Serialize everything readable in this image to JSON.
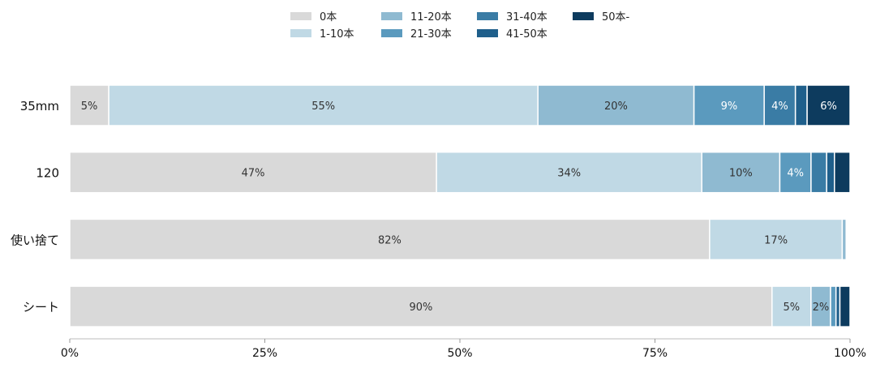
{
  "chart_data": {
    "type": "bar",
    "orientation": "horizontal",
    "stacked": true,
    "percent": true,
    "categories": [
      "35mm",
      "120",
      "使い捨て",
      "シート"
    ],
    "xlim": [
      0,
      100
    ],
    "x_ticks": [
      "0%",
      "25%",
      "50%",
      "75%",
      "100%"
    ],
    "legend_position": "top",
    "grid": false,
    "series": [
      {
        "name": "0本",
        "color": "#d9d9d9",
        "values": [
          5,
          47,
          82,
          90
        ],
        "labels": [
          "5%",
          "47%",
          "82%",
          "90%"
        ]
      },
      {
        "name": "1-10本",
        "color": "#c0d9e5",
        "values": [
          55,
          34,
          17,
          5
        ],
        "labels": [
          "55%",
          "34%",
          "17%",
          "5%"
        ]
      },
      {
        "name": "11-20本",
        "color": "#8fbad1",
        "values": [
          20,
          10,
          0.5,
          2.5
        ],
        "labels": [
          "20%",
          "10%",
          "",
          "2%"
        ]
      },
      {
        "name": "21-30本",
        "color": "#5b9abe",
        "values": [
          9,
          4,
          0,
          0.7
        ],
        "labels": [
          "9%",
          "4%",
          "",
          ""
        ]
      },
      {
        "name": "31-40本",
        "color": "#3a7ca5",
        "values": [
          4,
          2,
          0,
          0
        ],
        "labels": [
          "4%",
          "",
          "",
          ""
        ]
      },
      {
        "name": "41-50本",
        "color": "#1f5f8b",
        "values": [
          1.5,
          1,
          0,
          0.5
        ],
        "labels": [
          "",
          "",
          "",
          ""
        ]
      },
      {
        "name": "50本-",
        "color": "#0d3b5e",
        "values": [
          5.5,
          2,
          0,
          1.3
        ],
        "labels": [
          "6%",
          "",
          "",
          ""
        ]
      }
    ]
  }
}
